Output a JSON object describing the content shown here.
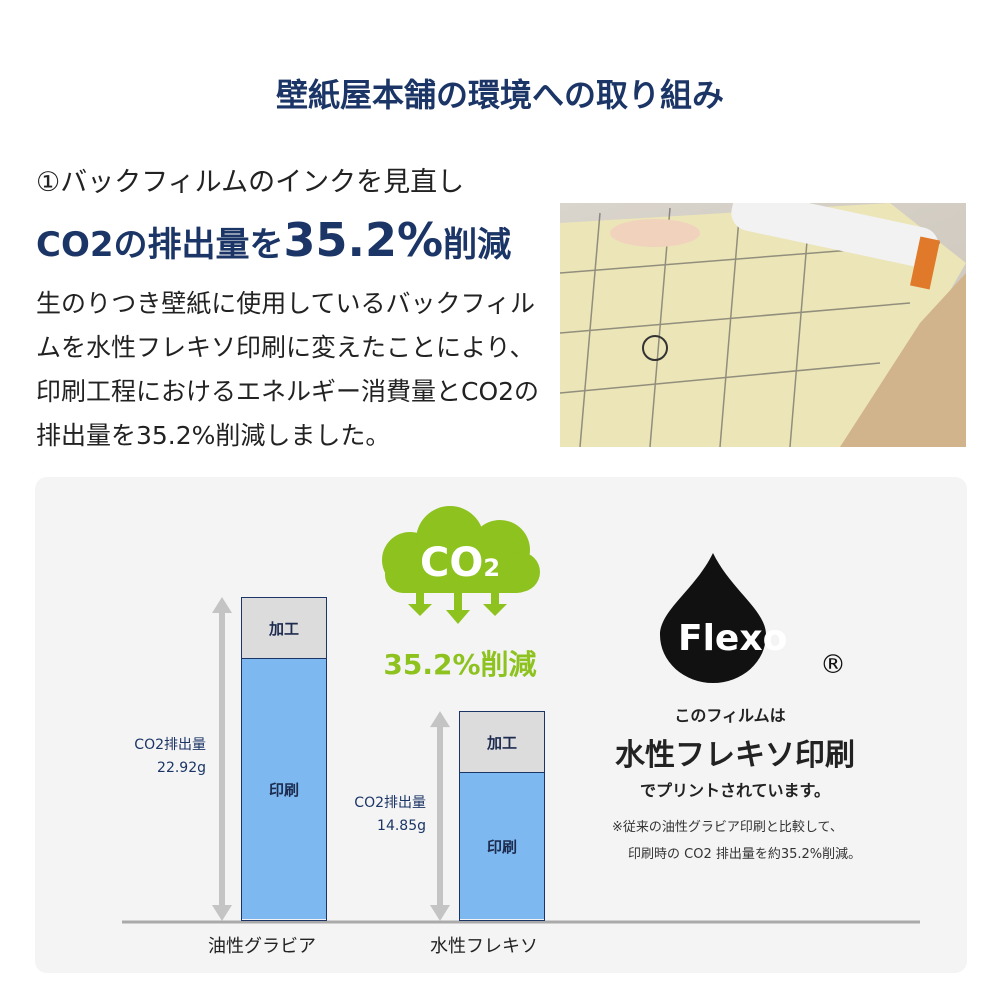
{
  "title": "壁紙屋本舗の環境への取り組み",
  "section": {
    "subtitle": "①バックフィルムのインクを見直し",
    "headline_pre": "CO2の排出量を",
    "headline_value": "35.2%",
    "headline_post": "削減",
    "paragraph": "生のりつき壁紙に使用しているバックフィルムを水性フレキソ印刷に変えたことにより、印刷工程におけるエネルギー消費量とCO2の排出量を35.2%削減しました。"
  },
  "cloud": {
    "label": "CO",
    "subscript": "2",
    "reduction": "35.2%削減"
  },
  "colors": {
    "navy": "#1b3566",
    "green": "#8dc21f",
    "bar_print": "#7db9f0",
    "bar_process": "#dcdcdc"
  },
  "chart_data": {
    "type": "bar",
    "stacked": true,
    "categories": [
      "油性グラビア",
      "水性フレキソ"
    ],
    "segments": [
      "加工",
      "印刷"
    ],
    "totals_label": "CO2排出量",
    "totals": [
      22.92,
      14.85
    ],
    "totals_text": [
      "22.92g",
      "14.85g"
    ],
    "unit": "g"
  },
  "flexo": {
    "logo": "Flexo",
    "registered": "®",
    "line1": "このフィルムは",
    "line2": "水性フレキソ印刷",
    "line3": "でプリントされています。",
    "note1": "※従来の油性グラビア印刷と比較して、",
    "note2": "印刷時の CO2 排出量を約35.2%削減。"
  }
}
